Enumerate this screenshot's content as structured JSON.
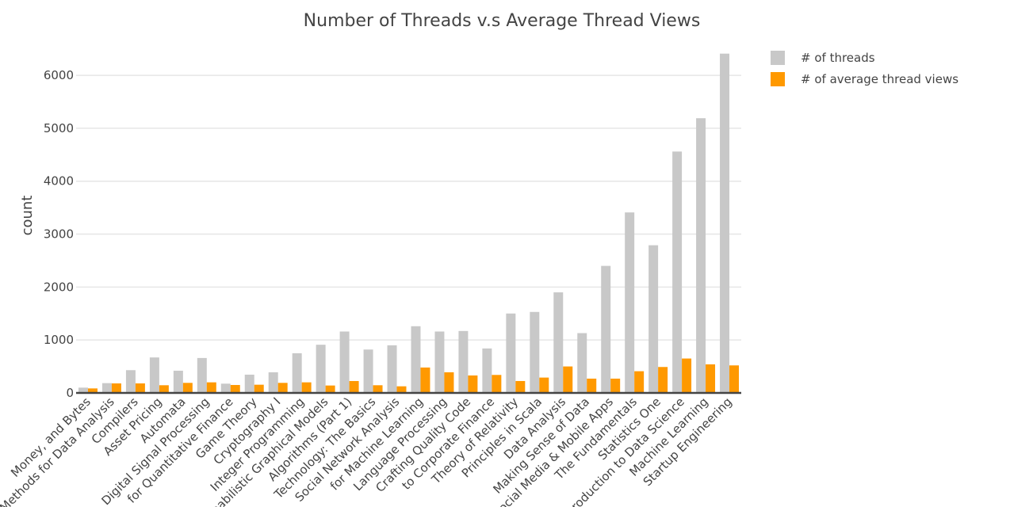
{
  "chart_data": {
    "type": "bar",
    "title": "Number of Threads v.s Average Thread Views",
    "xlabel": "",
    "ylabel": "count",
    "ylim": [
      0,
      6600
    ],
    "yticks": [
      0,
      1000,
      2000,
      3000,
      4000,
      5000,
      6000
    ],
    "grid": true,
    "legend_position": "top-right",
    "categories": [
      "Money, and Bytes",
      "Methods for Data Analysis",
      "Compilers",
      "Asset Pricing",
      "Automata",
      "Digital Signal Processing",
      "for Quantitative Finance",
      "Game Theory",
      "Cryptography I",
      "Integer Programming",
      "Probabilistic Graphical Models",
      "Algorithms (Part 1)",
      "Technology: The Basics",
      "Social Network Analysis",
      "for Machine Learning",
      "Language Processing",
      "Crafting Quality Code",
      "to Corporate Finance",
      "Theory of Relativity",
      "Principles in Scala",
      "Data Analysis",
      "Making Sense of Data",
      "Social Media & Mobile Apps",
      "The Fundamentals",
      "Statistics One",
      "Introduction to Data Science",
      "Machine Learning",
      "Startup Engineering"
    ],
    "series": [
      {
        "name": "# of threads",
        "color": "#c8c8c8",
        "values": [
          100,
          185,
          430,
          670,
          420,
          660,
          175,
          345,
          390,
          750,
          910,
          1160,
          820,
          900,
          1260,
          1160,
          1170,
          840,
          1500,
          1530,
          1900,
          1130,
          2400,
          3410,
          2790,
          4560,
          5190,
          6410
        ]
      },
      {
        "name": "# of average thread views",
        "color": "#ff9900",
        "values": [
          85,
          180,
          180,
          145,
          190,
          200,
          150,
          155,
          190,
          200,
          140,
          225,
          145,
          125,
          480,
          390,
          330,
          340,
          225,
          290,
          500,
          270,
          270,
          410,
          490,
          650,
          540,
          520
        ]
      }
    ]
  }
}
